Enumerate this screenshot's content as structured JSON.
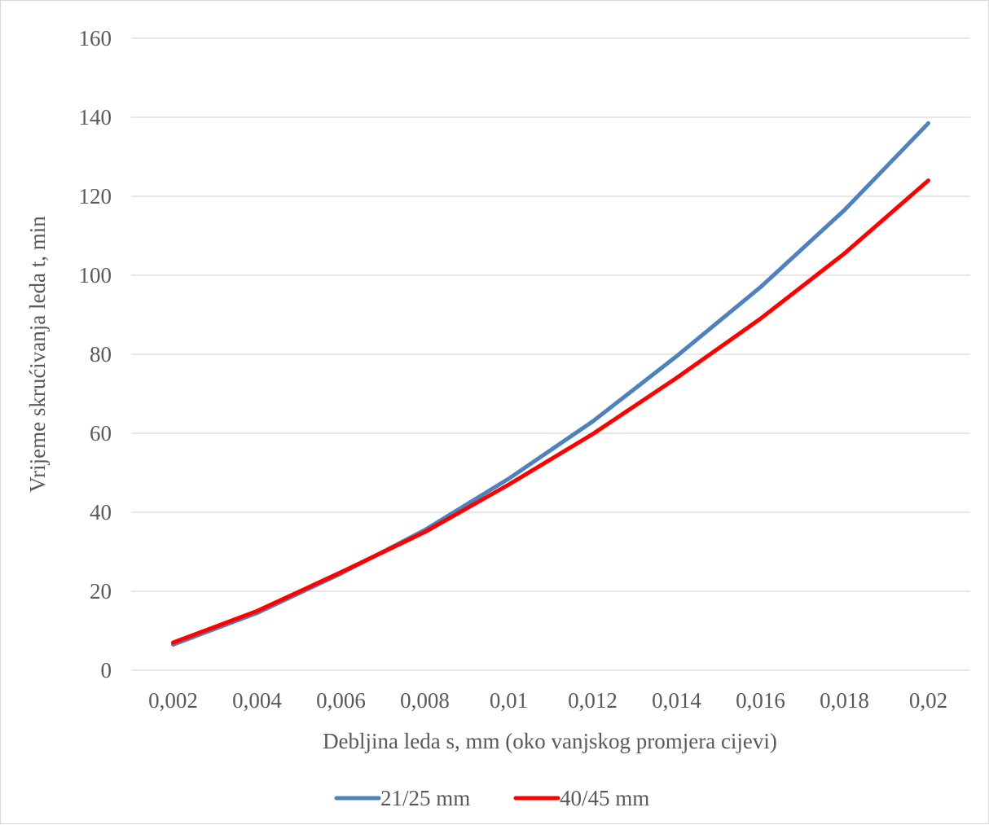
{
  "chart_data": {
    "type": "line",
    "title": "",
    "xlabel": "Debljina leda s, mm (oko vanjskog promjera cijevi)",
    "ylabel": "Vrijeme skrućivanja leda t, min",
    "categories": [
      "0,002",
      "0,004",
      "0,006",
      "0,008",
      "0,01",
      "0,012",
      "0,014",
      "0,016",
      "0,018",
      "0,02"
    ],
    "ylim": [
      0,
      160
    ],
    "yticks": [
      "0",
      "20",
      "40",
      "60",
      "80",
      "100",
      "120",
      "140",
      "160"
    ],
    "grid": "horizontal",
    "legend": "bottom",
    "series": [
      {
        "name": "21/25 mm",
        "color": "#4f81bd",
        "values": [
          6.5,
          14.5,
          24.5,
          35.5,
          48.5,
          63,
          79.5,
          97,
          116.5,
          138.5
        ]
      },
      {
        "name": "40/45 mm",
        "color": "#ff0000",
        "values": [
          7,
          15,
          24.8,
          35,
          47,
          59.8,
          74,
          89,
          105.5,
          124
        ]
      }
    ]
  }
}
